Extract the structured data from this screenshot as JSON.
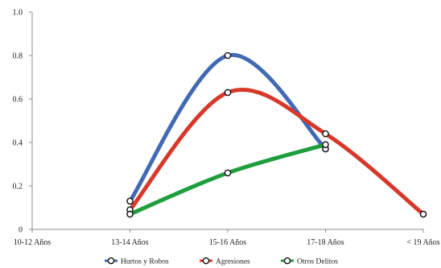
{
  "chart_data": {
    "type": "line",
    "categories": [
      "10-12 Años",
      "13-14 Años",
      "15-16 Años",
      "17-18 Años",
      "< 19 Años"
    ],
    "ylim": [
      0,
      1.0
    ],
    "yticks": [
      "0",
      "0.2",
      "0.4",
      "0.6",
      "0.8",
      "1.0"
    ],
    "grid": false,
    "smooth": true,
    "legend_position": "bottom",
    "series": [
      {
        "name": "Hurtos y Robos",
        "color": "#4169b4",
        "x": [
          "13-14 Años",
          "15-16 Años",
          "17-18 Años"
        ],
        "values": [
          0.13,
          0.8,
          0.37
        ]
      },
      {
        "name": "Agresiones",
        "color": "#d7382a",
        "x": [
          "13-14 Años",
          "15-16 Años",
          "17-18 Años",
          "< 19 Años"
        ],
        "values": [
          0.09,
          0.63,
          0.44,
          0.07
        ]
      },
      {
        "name": "Otros Delitos",
        "color": "#1f9e3e",
        "x": [
          "13-14 Años",
          "15-16 Años",
          "17-18 Años"
        ],
        "values": [
          0.07,
          0.26,
          0.39
        ]
      }
    ]
  }
}
